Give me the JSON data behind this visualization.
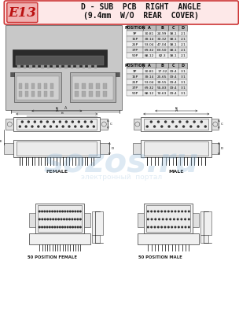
{
  "title_code": "E13",
  "title_line1": "D - SUB  PCB  RIGHT  ANGLE",
  "title_line2": "(9.4mm  W/O  REAR  COVER)",
  "bg_color": "#ffffff",
  "header_bg": "#fde8e8",
  "header_border": "#cc3333",
  "table1_headers": [
    "POSITION",
    "A",
    "B",
    "C",
    "D"
  ],
  "table1_rows": [
    [
      "9P",
      "30.81",
      "24.99",
      "08.1",
      "2.1"
    ],
    [
      "15P",
      "39.14",
      "33.32",
      "08.1",
      "2.1"
    ],
    [
      "25P",
      "53.04",
      "47.04",
      "08.1",
      "2.1"
    ],
    [
      "37P",
      "69.32",
      "63.50",
      "08.1",
      "2.1"
    ],
    [
      "50P",
      "88.12",
      "82.3",
      "08.1",
      "2.1"
    ]
  ],
  "table2_headers": [
    "POSITION",
    "A",
    "B",
    "C",
    "D"
  ],
  "table2_rows": [
    [
      "9P",
      "30.81",
      "17.32",
      "09.4",
      "3.1"
    ],
    [
      "15P",
      "39.14",
      "25.65",
      "09.4",
      "3.1"
    ],
    [
      "25P",
      "53.04",
      "39.55",
      "09.4",
      "3.1"
    ],
    [
      "37P",
      "69.32",
      "55.83",
      "09.4",
      "3.1"
    ],
    [
      "50P",
      "88.12",
      "74.63",
      "09.4",
      "3.1"
    ]
  ],
  "label_female": "FEMALE",
  "label_male": "MALE",
  "label_50female": "50 POSITION FEMALE",
  "label_50male": "50 POSITION MALE",
  "watermark_text": "sozos.ru",
  "watermark_sub": "электронный  портал",
  "watermark_color": "#90b8d8"
}
